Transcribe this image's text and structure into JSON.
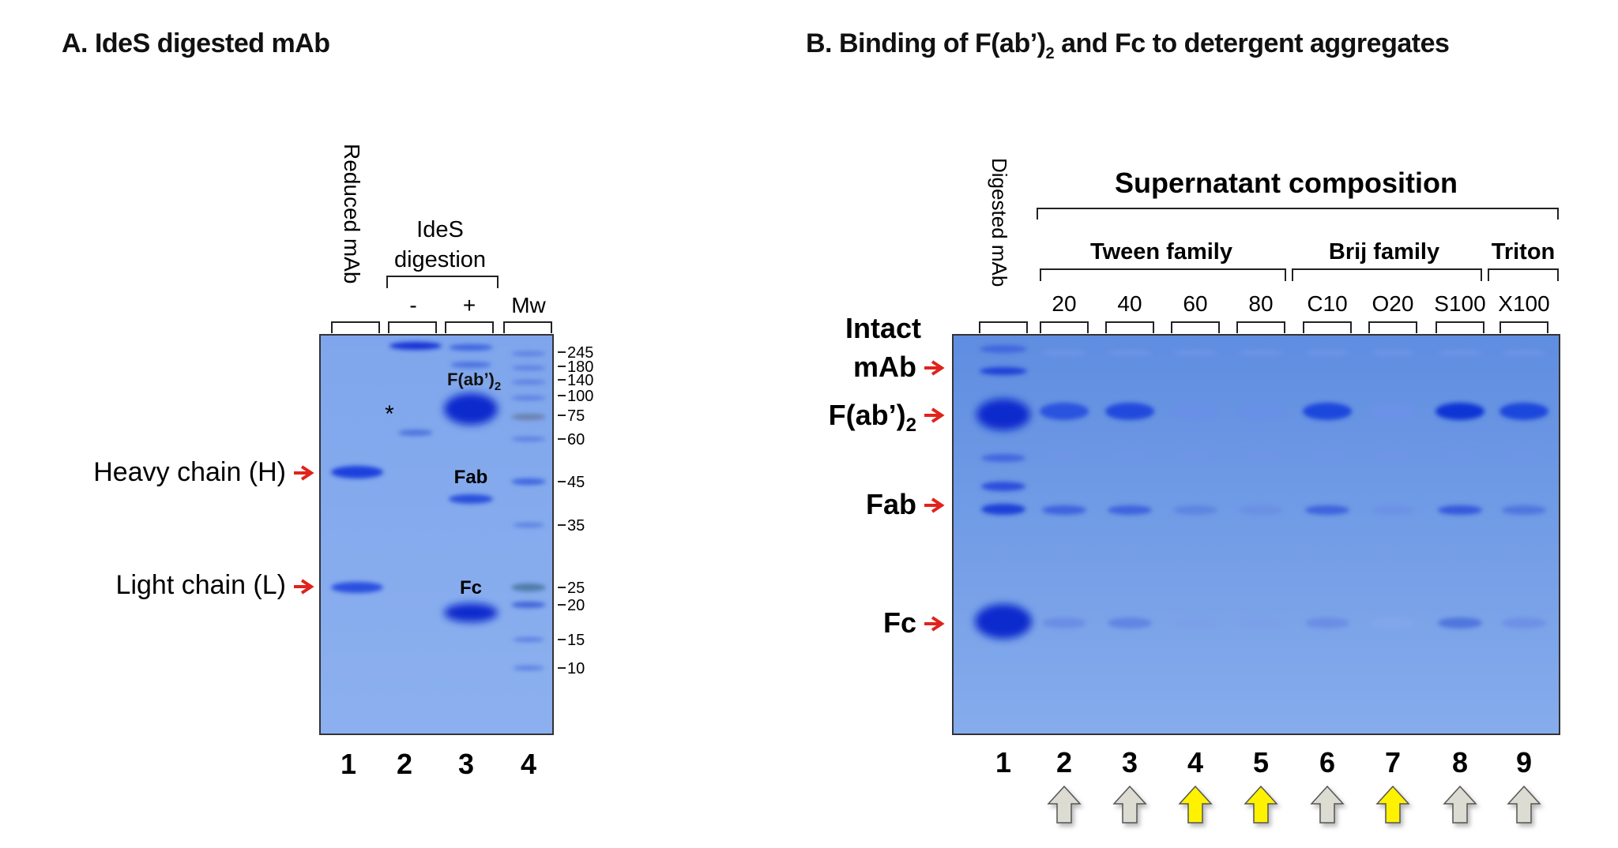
{
  "panel_a": {
    "title": "A. IdeS digested mAb",
    "rotated_lane_label": "Reduced mAb",
    "group_label_line1": "IdeS",
    "group_label_line2": "digestion",
    "lane_headers": [
      "-",
      "+",
      "Mw"
    ],
    "chain_labels": [
      "Heavy chain (H)",
      "Light chain (L)"
    ],
    "star": "*",
    "band_labels": {
      "fab2": "F(ab’)",
      "fab2_sub": "2",
      "fab": "Fab",
      "fc": "Fc"
    },
    "marker_values": [
      "245",
      "180",
      "140",
      "100",
      "75",
      "60",
      "45",
      "35",
      "25",
      "20",
      "15",
      "10"
    ],
    "lane_numbers": [
      "1",
      "2",
      "3",
      "4"
    ]
  },
  "panel_b": {
    "title": "B. Binding of F(ab’)",
    "title_sub": "2",
    "title_rest": " and Fc to detergent aggregates",
    "rotated_lane_label": "Digested mAb",
    "supernatant_label": "Supernatant composition",
    "families": [
      "Tween family",
      "Brij family",
      "Triton"
    ],
    "detergents": [
      "20",
      "40",
      "60",
      "80",
      "C10",
      "O20",
      "S100",
      "X100"
    ],
    "left_labels": {
      "intact_line1": "Intact",
      "intact_line2": "mAb",
      "fab2": "F(ab’)",
      "fab2_sub": "2",
      "fab": "Fab",
      "fc": "Fc"
    },
    "lane_numbers": [
      "1",
      "2",
      "3",
      "4",
      "5",
      "6",
      "7",
      "8",
      "9"
    ],
    "arrow_colors": [
      "grey",
      "grey",
      "yellow",
      "yellow",
      "grey",
      "yellow",
      "grey",
      "grey"
    ]
  },
  "colors": {
    "gel_background": "#5d8be0",
    "band_dark": "#0a2fd0",
    "red_arrow": "#e0231c",
    "arrow_grey": "#dcdcd2",
    "arrow_yellow": "#fff200"
  }
}
